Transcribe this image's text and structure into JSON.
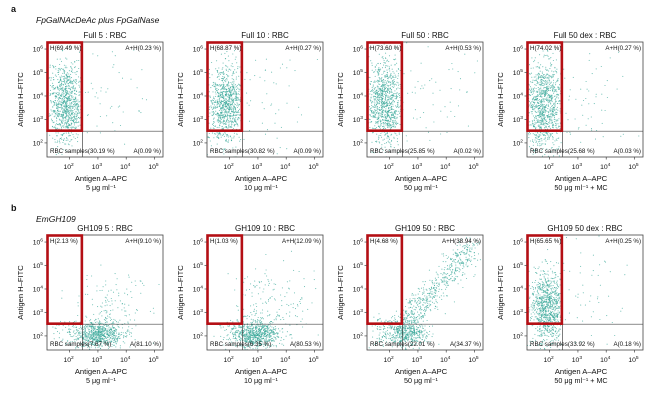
{
  "chart_data": {
    "type": "scatter",
    "axis_scale": "log10",
    "xlabel": "Antigen A–APC",
    "ylabel": "Antigen H–FITC",
    "xticks": [
      2,
      3,
      4,
      5
    ],
    "yticks": [
      2,
      3,
      4,
      5,
      6
    ],
    "xlim": [
      1.2,
      5.3
    ],
    "ylim": [
      1.4,
      6.3
    ],
    "gate_threshold_x": 2.45,
    "gate_threshold_y": 2.5,
    "tick_base": "10",
    "marker_color": "#3aa89a",
    "highlight_color": "#b40f14",
    "rows": [
      {
        "label": "a",
        "title": "FpGalNAcDeAc plus FpGalNase",
        "panels": [
          {
            "title": "Full 5 : RBC",
            "subtitle": "5 μg ml⁻¹",
            "q_h": "H(69.49 %)",
            "q_ah": "A+H(0.23 %)",
            "q_rbc": "RBC samples(30.19 %)",
            "q_a": "A(0.09 %)"
          },
          {
            "title": "Full 10 : RBC",
            "subtitle": "10 μg ml⁻¹",
            "q_h": "H(68.87 %)",
            "q_ah": "A+H(0.27 %)",
            "q_rbc": "RBC samples(30.82 %)",
            "q_a": "A(0.09 %)"
          },
          {
            "title": "Full 50 : RBC",
            "subtitle": "50 μg ml⁻¹",
            "q_h": "H(73.60 %)",
            "q_ah": "A+H(0.53 %)",
            "q_rbc": "RBC samples(25.85 %)",
            "q_a": "A(0.02 %)"
          },
          {
            "title": "Full 50 dex : RBC",
            "subtitle": "50 μg ml⁻¹ + MC",
            "q_h": "H(74.02 %)",
            "q_ah": "A+H(0.27 %)",
            "q_rbc": "RBC samples(25.68 %)",
            "q_a": "A(0.03 %)"
          }
        ]
      },
      {
        "label": "b",
        "title": "EmGH109",
        "panels": [
          {
            "title": "GH109 5 : RBC",
            "subtitle": "5 μg ml⁻¹",
            "q_h": "H(2.13 %)",
            "q_ah": "A+H(9.10 %)",
            "q_rbc": "RBC samples(7.67 %)",
            "q_a": "A(81.10 %)"
          },
          {
            "title": "GH109 10 : RBC",
            "subtitle": "10 μg ml⁻¹",
            "q_h": "H(1.03 %)",
            "q_ah": "A+H(12.09 %)",
            "q_rbc": "RBC samples(6.35 %)",
            "q_a": "A(80.53 %)"
          },
          {
            "title": "GH109 50 : RBC",
            "subtitle": "50 μg ml⁻¹",
            "q_h": "H(4.68 %)",
            "q_ah": "A+H(38.94 %)",
            "q_rbc": "RBC samples(22.01 %)",
            "q_a": "A(34.37 %)"
          },
          {
            "title": "GH109 50 dex : RBC",
            "subtitle": "50 μg ml⁻¹ + MC",
            "q_h": "H(65.65 %)",
            "q_ah": "A+H(0.25 %)",
            "q_rbc": "RBC samples(33.92 %)",
            "q_a": "A(0.18 %)"
          }
        ]
      }
    ]
  }
}
